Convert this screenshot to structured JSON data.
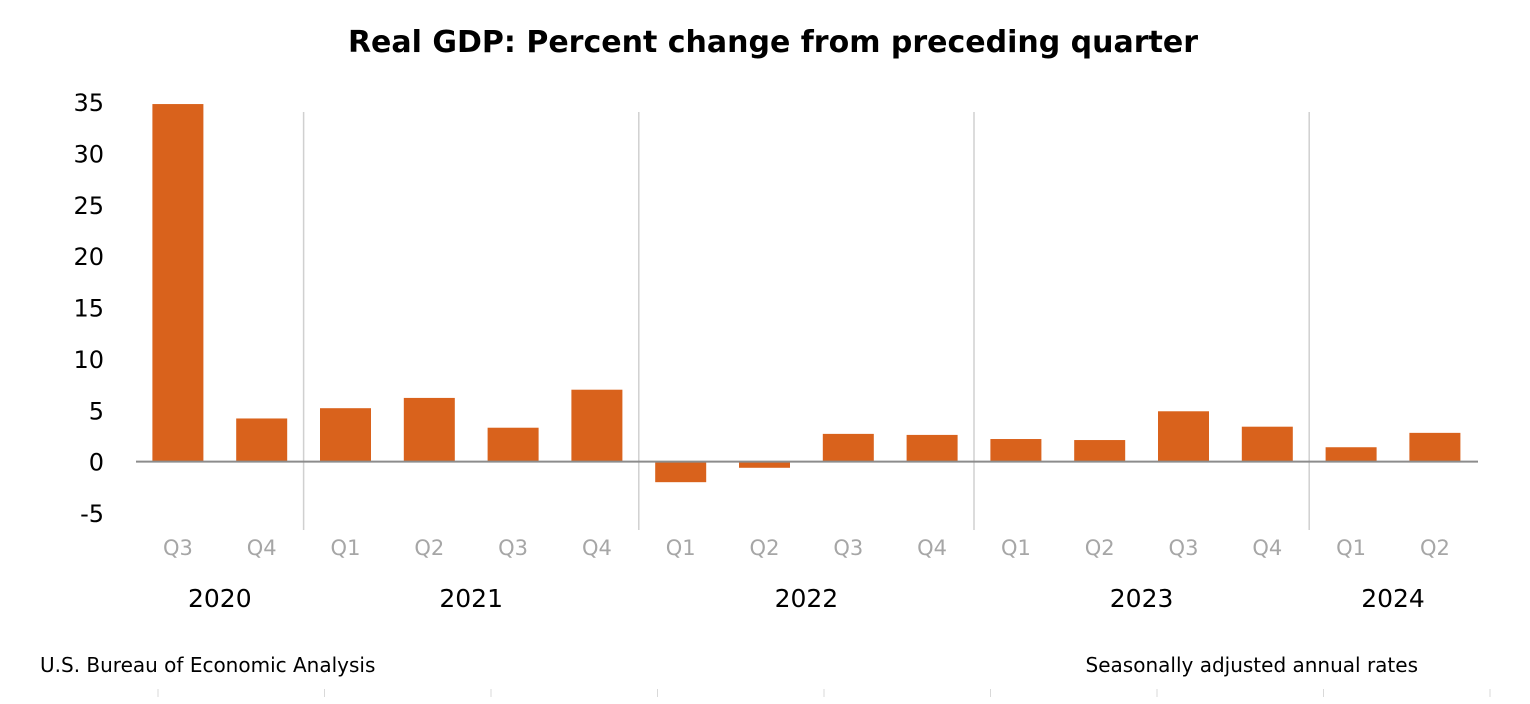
{
  "colors": {
    "bar": "#d9621c",
    "axis": "#8c8c8c",
    "divider": "#d0d0d0",
    "quarter_label": "#a6a6a6",
    "text": "#000000",
    "background": "#ffffff"
  },
  "footer": {
    "source": "U.S. Bureau of Economic Analysis",
    "note": "Seasonally adjusted annual rates"
  },
  "chart_data": {
    "type": "bar",
    "title": "Real GDP: Percent change from preceding quarter",
    "xlabel": "",
    "ylabel": "",
    "ylim": [
      -5,
      35
    ],
    "yticks": [
      35,
      30,
      25,
      20,
      15,
      10,
      5,
      0,
      -5
    ],
    "ytick_labels": [
      "35",
      "30",
      "25",
      "20",
      "15",
      "10",
      "5",
      "0",
      "-5"
    ],
    "categories": [
      "Q3",
      "Q4",
      "Q1",
      "Q2",
      "Q3",
      "Q4",
      "Q1",
      "Q2",
      "Q3",
      "Q4",
      "Q1",
      "Q2",
      "Q3",
      "Q4",
      "Q1",
      "Q2"
    ],
    "values": [
      34.8,
      4.2,
      5.2,
      6.2,
      3.3,
      7.0,
      -2.0,
      -0.6,
      2.7,
      2.6,
      2.2,
      2.1,
      4.9,
      3.4,
      1.4,
      2.8
    ],
    "year_groups": [
      {
        "label": "2020",
        "start": 0,
        "end": 1
      },
      {
        "label": "2021",
        "start": 2,
        "end": 5
      },
      {
        "label": "2022",
        "start": 6,
        "end": 9
      },
      {
        "label": "2023",
        "start": 10,
        "end": 13
      },
      {
        "label": "2024",
        "start": 14,
        "end": 15
      }
    ],
    "grid": false,
    "legend": "none"
  }
}
